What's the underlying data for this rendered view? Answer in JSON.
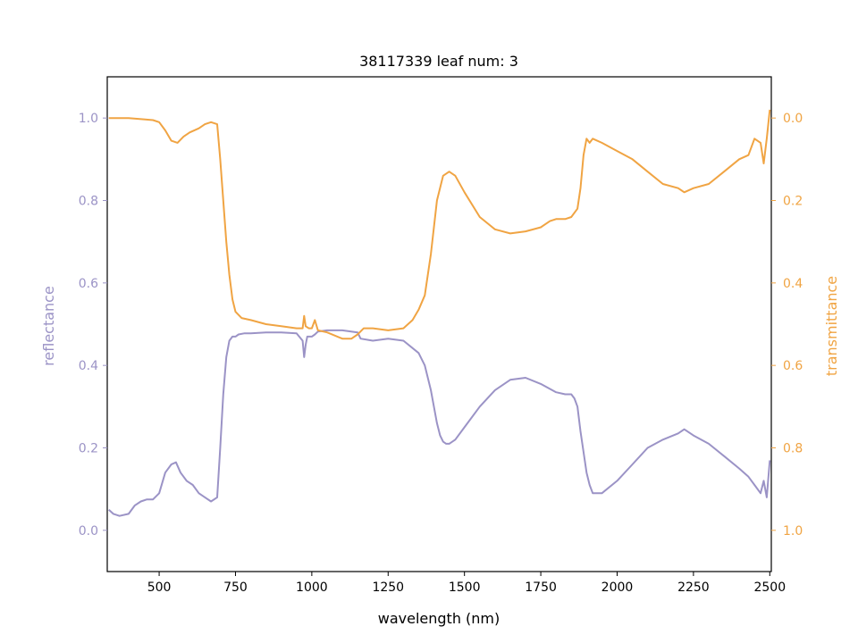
{
  "chart_data": {
    "type": "line",
    "title": "38117339 leaf num: 3",
    "xlabel": "wavelength (nm)",
    "ylabel": "reflectance",
    "y2label": "transmittance",
    "xlim": [
      330,
      2505
    ],
    "ylim": [
      -0.1,
      1.1
    ],
    "y2lim": [
      1.1,
      -0.1
    ],
    "y2_inverted": true,
    "x_ticks": [
      500,
      750,
      1000,
      1250,
      1500,
      1750,
      2000,
      2250,
      2500
    ],
    "y_ticks": [
      0.0,
      0.2,
      0.4,
      0.6,
      0.8,
      1.0
    ],
    "y2_ticks": [
      0.0,
      0.2,
      0.4,
      0.6,
      0.8,
      1.0
    ],
    "x_tick_labels": [
      "500",
      "750",
      "1000",
      "1250",
      "1500",
      "1750",
      "2000",
      "2250",
      "2500"
    ],
    "y_tick_labels": [
      "0.0",
      "0.2",
      "0.4",
      "0.6",
      "0.8",
      "1.0"
    ],
    "y2_tick_labels": [
      "0.0",
      "0.2",
      "0.4",
      "0.6",
      "0.8",
      "1.0"
    ],
    "grid": false,
    "colors": {
      "reflectance": "#9b93c6",
      "transmittance": "#f0a443",
      "axes": "#000000"
    },
    "series": [
      {
        "axis": "left",
        "x": [
          335,
          350,
          370,
          400,
          420,
          440,
          460,
          480,
          500,
          520,
          540,
          555,
          570,
          590,
          610,
          630,
          650,
          670,
          690,
          700,
          710,
          720,
          730,
          740,
          750,
          760,
          780,
          800,
          850,
          900,
          950,
          970,
          975,
          980,
          985,
          990,
          1000,
          1010,
          1020,
          1050,
          1100,
          1150,
          1160,
          1200,
          1250,
          1300,
          1350,
          1370,
          1390,
          1410,
          1420,
          1430,
          1440,
          1450,
          1470,
          1500,
          1550,
          1600,
          1650,
          1700,
          1750,
          1800,
          1830,
          1850,
          1860,
          1870,
          1880,
          1890,
          1900,
          1910,
          1920,
          1950,
          2000,
          2050,
          2100,
          2150,
          2200,
          2220,
          2250,
          2300,
          2350,
          2400,
          2430,
          2450,
          2470,
          2480,
          2490,
          2500
        ],
        "y": [
          0.05,
          0.04,
          0.035,
          0.04,
          0.06,
          0.07,
          0.075,
          0.075,
          0.09,
          0.14,
          0.16,
          0.165,
          0.14,
          0.12,
          0.11,
          0.09,
          0.08,
          0.07,
          0.08,
          0.2,
          0.33,
          0.42,
          0.46,
          0.47,
          0.47,
          0.475,
          0.478,
          0.478,
          0.48,
          0.48,
          0.478,
          0.46,
          0.42,
          0.45,
          0.47,
          0.47,
          0.47,
          0.475,
          0.482,
          0.485,
          0.485,
          0.48,
          0.465,
          0.46,
          0.465,
          0.46,
          0.43,
          0.4,
          0.34,
          0.26,
          0.23,
          0.215,
          0.21,
          0.21,
          0.22,
          0.25,
          0.3,
          0.34,
          0.365,
          0.37,
          0.355,
          0.335,
          0.33,
          0.33,
          0.32,
          0.3,
          0.24,
          0.19,
          0.14,
          0.11,
          0.09,
          0.09,
          0.12,
          0.16,
          0.2,
          0.22,
          0.235,
          0.245,
          0.23,
          0.21,
          0.18,
          0.15,
          0.13,
          0.11,
          0.09,
          0.12,
          0.08,
          0.17
        ]
      },
      {
        "axis": "right",
        "x": [
          335,
          350,
          400,
          450,
          480,
          500,
          520,
          540,
          560,
          580,
          600,
          630,
          650,
          670,
          690,
          700,
          710,
          720,
          730,
          740,
          750,
          770,
          800,
          850,
          900,
          950,
          970,
          975,
          980,
          990,
          1000,
          1010,
          1020,
          1050,
          1100,
          1130,
          1150,
          1170,
          1200,
          1250,
          1300,
          1330,
          1350,
          1370,
          1390,
          1410,
          1430,
          1450,
          1470,
          1500,
          1550,
          1600,
          1650,
          1700,
          1750,
          1780,
          1800,
          1830,
          1850,
          1870,
          1880,
          1890,
          1900,
          1910,
          1920,
          1950,
          2000,
          2050,
          2100,
          2150,
          2200,
          2220,
          2250,
          2300,
          2350,
          2400,
          2430,
          2450,
          2470,
          2480,
          2490,
          2500
        ],
        "y": [
          0.0,
          0.0,
          0.0,
          0.003,
          0.005,
          0.01,
          0.03,
          0.055,
          0.06,
          0.045,
          0.035,
          0.025,
          0.015,
          0.01,
          0.015,
          0.1,
          0.2,
          0.3,
          0.38,
          0.44,
          0.47,
          0.485,
          0.49,
          0.5,
          0.505,
          0.51,
          0.51,
          0.48,
          0.505,
          0.51,
          0.51,
          0.49,
          0.515,
          0.52,
          0.535,
          0.535,
          0.525,
          0.51,
          0.51,
          0.515,
          0.51,
          0.49,
          0.465,
          0.43,
          0.33,
          0.2,
          0.14,
          0.13,
          0.14,
          0.18,
          0.24,
          0.27,
          0.28,
          0.275,
          0.265,
          0.25,
          0.245,
          0.245,
          0.24,
          0.22,
          0.17,
          0.09,
          0.05,
          0.06,
          0.05,
          0.06,
          0.08,
          0.1,
          0.13,
          0.16,
          0.17,
          0.18,
          0.17,
          0.16,
          0.13,
          0.1,
          0.09,
          0.05,
          0.06,
          0.11,
          0.05,
          -0.02
        ]
      }
    ]
  }
}
